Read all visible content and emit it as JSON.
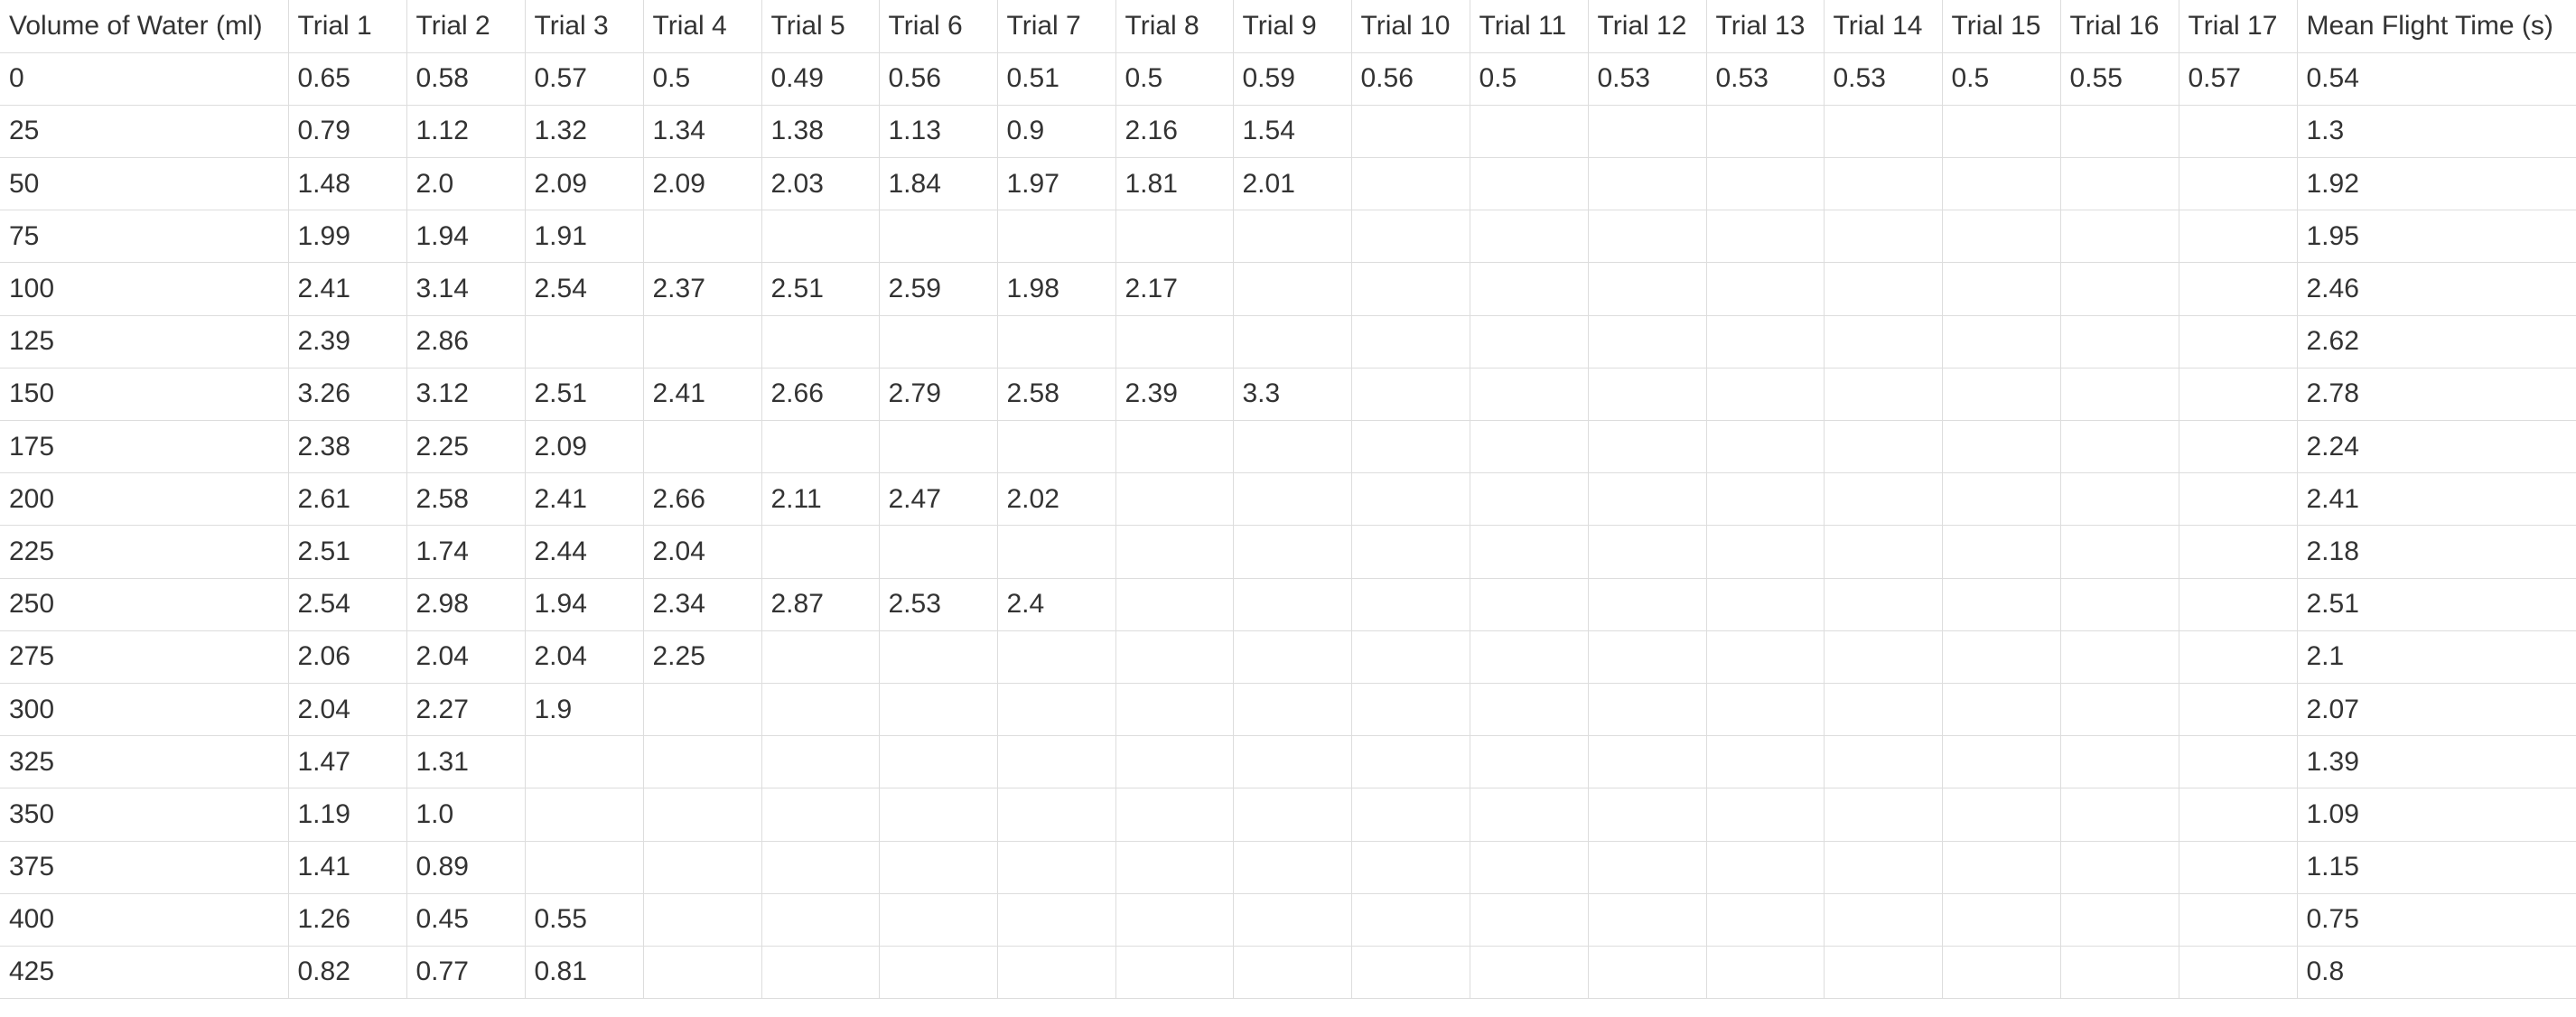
{
  "chart_data": {
    "type": "table",
    "columns": [
      "Volume of Water (ml)",
      "Trial 1",
      "Trial 2",
      "Trial 3",
      "Trial 4",
      "Trial 5",
      "Trial 6",
      "Trial 7",
      "Trial 8",
      "Trial 9",
      "Trial 10",
      "Trial 11",
      "Trial 12",
      "Trial 13",
      "Trial 14",
      "Trial 15",
      "Trial 16",
      "Trial 17",
      "Mean Flight Time (s)"
    ],
    "rows": [
      [
        "0",
        "0.65",
        "0.58",
        "0.57",
        "0.5",
        "0.49",
        "0.56",
        "0.51",
        "0.5",
        "0.59",
        "0.56",
        "0.5",
        "0.53",
        "0.53",
        "0.53",
        "0.5",
        "0.55",
        "0.57",
        "0.54"
      ],
      [
        "25",
        "0.79",
        "1.12",
        "1.32",
        "1.34",
        "1.38",
        "1.13",
        "0.9",
        "2.16",
        "1.54",
        "",
        "",
        "",
        "",
        "",
        "",
        "",
        "",
        "1.3"
      ],
      [
        "50",
        "1.48",
        "2.0",
        "2.09",
        "2.09",
        "2.03",
        "1.84",
        "1.97",
        "1.81",
        "2.01",
        "",
        "",
        "",
        "",
        "",
        "",
        "",
        "",
        "1.92"
      ],
      [
        "75",
        "1.99",
        "1.94",
        "1.91",
        "",
        "",
        "",
        "",
        "",
        "",
        "",
        "",
        "",
        "",
        "",
        "",
        "",
        "",
        "1.95"
      ],
      [
        "100",
        "2.41",
        "3.14",
        "2.54",
        "2.37",
        "2.51",
        "2.59",
        "1.98",
        "2.17",
        "",
        "",
        "",
        "",
        "",
        "",
        "",
        "",
        "",
        "2.46"
      ],
      [
        "125",
        "2.39",
        "2.86",
        "",
        "",
        "",
        "",
        "",
        "",
        "",
        "",
        "",
        "",
        "",
        "",
        "",
        "",
        "",
        "2.62"
      ],
      [
        "150",
        "3.26",
        "3.12",
        "2.51",
        "2.41",
        "2.66",
        "2.79",
        "2.58",
        "2.39",
        "3.3",
        "",
        "",
        "",
        "",
        "",
        "",
        "",
        "",
        "2.78"
      ],
      [
        "175",
        "2.38",
        "2.25",
        "2.09",
        "",
        "",
        "",
        "",
        "",
        "",
        "",
        "",
        "",
        "",
        "",
        "",
        "",
        "",
        "2.24"
      ],
      [
        "200",
        "2.61",
        "2.58",
        "2.41",
        "2.66",
        "2.11",
        "2.47",
        "2.02",
        "",
        "",
        "",
        "",
        "",
        "",
        "",
        "",
        "",
        "",
        "2.41"
      ],
      [
        "225",
        "2.51",
        "1.74",
        "2.44",
        "2.04",
        "",
        "",
        "",
        "",
        "",
        "",
        "",
        "",
        "",
        "",
        "",
        "",
        "",
        "2.18"
      ],
      [
        "250",
        "2.54",
        "2.98",
        "1.94",
        "2.34",
        "2.87",
        "2.53",
        "2.4",
        "",
        "",
        "",
        "",
        "",
        "",
        "",
        "",
        "",
        "",
        "2.51"
      ],
      [
        "275",
        "2.06",
        "2.04",
        "2.04",
        "2.25",
        "",
        "",
        "",
        "",
        "",
        "",
        "",
        "",
        "",
        "",
        "",
        "",
        "",
        "2.1"
      ],
      [
        "300",
        "2.04",
        "2.27",
        "1.9",
        "",
        "",
        "",
        "",
        "",
        "",
        "",
        "",
        "",
        "",
        "",
        "",
        "",
        "",
        "2.07"
      ],
      [
        "325",
        "1.47",
        "1.31",
        "",
        "",
        "",
        "",
        "",
        "",
        "",
        "",
        "",
        "",
        "",
        "",
        "",
        "",
        "",
        "1.39"
      ],
      [
        "350",
        "1.19",
        "1.0",
        "",
        "",
        "",
        "",
        "",
        "",
        "",
        "",
        "",
        "",
        "",
        "",
        "",
        "",
        "",
        "1.09"
      ],
      [
        "375",
        "1.41",
        "0.89",
        "",
        "",
        "",
        "",
        "",
        "",
        "",
        "",
        "",
        "",
        "",
        "",
        "",
        "",
        "",
        "1.15"
      ],
      [
        "400",
        "1.26",
        "0.45",
        "0.55",
        "",
        "",
        "",
        "",
        "",
        "",
        "",
        "",
        "",
        "",
        "",
        "",
        "",
        "",
        "0.75"
      ],
      [
        "425",
        "0.82",
        "0.77",
        "0.81",
        "",
        "",
        "",
        "",
        "",
        "",
        "",
        "",
        "",
        "",
        "",
        "",
        "",
        "",
        "0.8"
      ]
    ]
  },
  "style": {
    "text_color": "#333333",
    "border_color": "#dddddd",
    "background": "#ffffff"
  }
}
